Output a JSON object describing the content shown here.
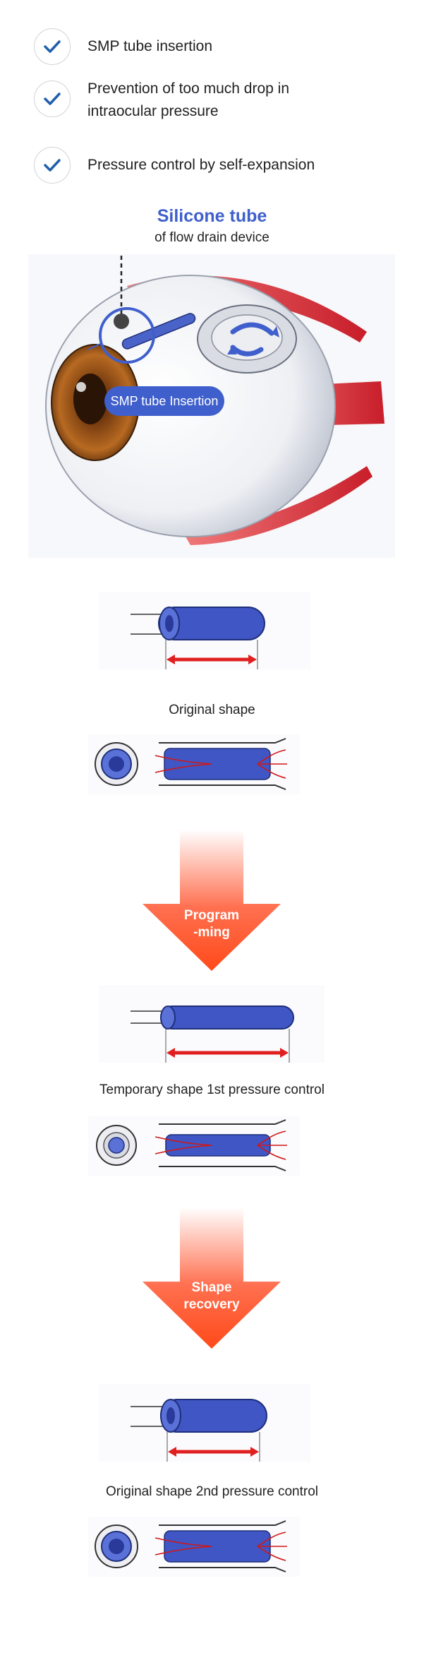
{
  "checklist": [
    {
      "line1": "SMP tube insertion",
      "line2": ""
    },
    {
      "line1": "Prevention of too much drop in",
      "line2": "intraocular pressure"
    },
    {
      "line1": "Pressure control by self-expansion",
      "line2": ""
    }
  ],
  "eye": {
    "title": "Silicone tube",
    "subtitle": "of flow drain device",
    "badge": "SMP tube Insertion"
  },
  "stages": [
    {
      "caption": "Original shape"
    },
    {
      "caption": "Temporary shape 1st pressure control"
    },
    {
      "caption": "Original shape 2nd pressure control"
    }
  ],
  "arrows": [
    {
      "line1": "Program",
      "line2": "-ming"
    },
    {
      "line1": "Shape",
      "line2": "recovery"
    }
  ],
  "colors": {
    "accent_blue": "#3f5fcc",
    "check_blue": "#1f5fae",
    "arrow_orange": "#ff4a1a",
    "tube_blue": "#3f56c4",
    "dimension_red": "#e02020"
  }
}
